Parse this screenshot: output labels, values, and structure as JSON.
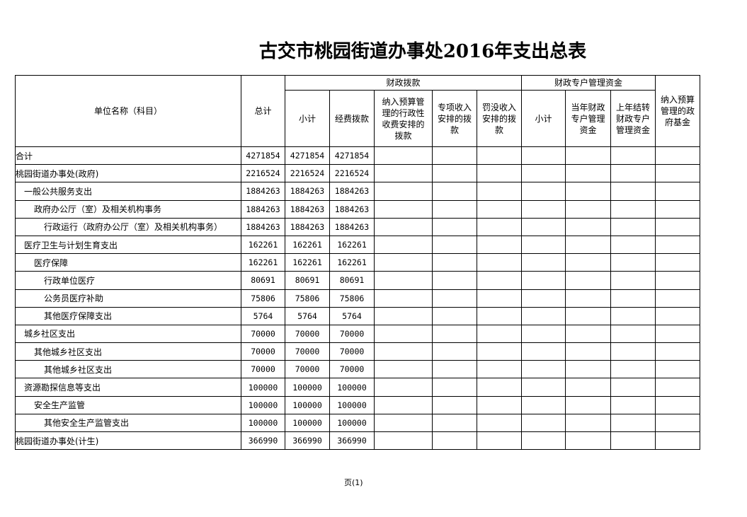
{
  "title": "古交市桃园街道办事处2016年支出总表",
  "headers": {
    "name": "单位名称（科目）",
    "total": "总计",
    "fiscal": "财政拨款",
    "subtotal": "小计",
    "funding": "经费拨款",
    "admin_fee": "纳入预算管理的行政性收费安排的拨款",
    "special_income": "专项收入安排的拨款",
    "fines": "罚没收入安排的拨款",
    "special_account": "财政专户管理资金",
    "sa_subtotal": "小计",
    "current_year": "当年财政专户管理资金",
    "prior_year": "上年结转财政专户管理资金",
    "gov_fund": "纳入预算管理的政府基金"
  },
  "rows": [
    {
      "name": "合计",
      "level": 0,
      "total": "4271854",
      "subtotal": "4271854",
      "funding": "4271854"
    },
    {
      "name": "桃园街道办事处(政府)",
      "level": 0,
      "total": "2216524",
      "subtotal": "2216524",
      "funding": "2216524"
    },
    {
      "name": "一般公共服务支出",
      "level": 1,
      "total": "1884263",
      "subtotal": "1884263",
      "funding": "1884263"
    },
    {
      "name": "政府办公厅（室）及相关机构事务",
      "level": 2,
      "total": "1884263",
      "subtotal": "1884263",
      "funding": "1884263"
    },
    {
      "name": "行政运行（政府办公厅（室）及相关机构事务）",
      "level": 3,
      "total": "1884263",
      "subtotal": "1884263",
      "funding": "1884263"
    },
    {
      "name": "医疗卫生与计划生育支出",
      "level": 1,
      "total": "162261",
      "subtotal": "162261",
      "funding": "162261"
    },
    {
      "name": "医疗保障",
      "level": 2,
      "total": "162261",
      "subtotal": "162261",
      "funding": "162261"
    },
    {
      "name": "行政单位医疗",
      "level": 3,
      "total": "80691",
      "subtotal": "80691",
      "funding": "80691"
    },
    {
      "name": "公务员医疗补助",
      "level": 3,
      "total": "75806",
      "subtotal": "75806",
      "funding": "75806"
    },
    {
      "name": "其他医疗保障支出",
      "level": 3,
      "total": "5764",
      "subtotal": "5764",
      "funding": "5764"
    },
    {
      "name": "城乡社区支出",
      "level": 1,
      "total": "70000",
      "subtotal": "70000",
      "funding": "70000"
    },
    {
      "name": "其他城乡社区支出",
      "level": 2,
      "total": "70000",
      "subtotal": "70000",
      "funding": "70000"
    },
    {
      "name": "其他城乡社区支出",
      "level": 3,
      "total": "70000",
      "subtotal": "70000",
      "funding": "70000"
    },
    {
      "name": "资源勘探信息等支出",
      "level": 1,
      "total": "100000",
      "subtotal": "100000",
      "funding": "100000"
    },
    {
      "name": "安全生产监管",
      "level": 2,
      "total": "100000",
      "subtotal": "100000",
      "funding": "100000"
    },
    {
      "name": "其他安全生产监管支出",
      "level": 3,
      "total": "100000",
      "subtotal": "100000",
      "funding": "100000"
    },
    {
      "name": "桃园街道办事处(计生)",
      "level": 0,
      "total": "366990",
      "subtotal": "366990",
      "funding": "366990"
    }
  ],
  "footer": "页(1)"
}
